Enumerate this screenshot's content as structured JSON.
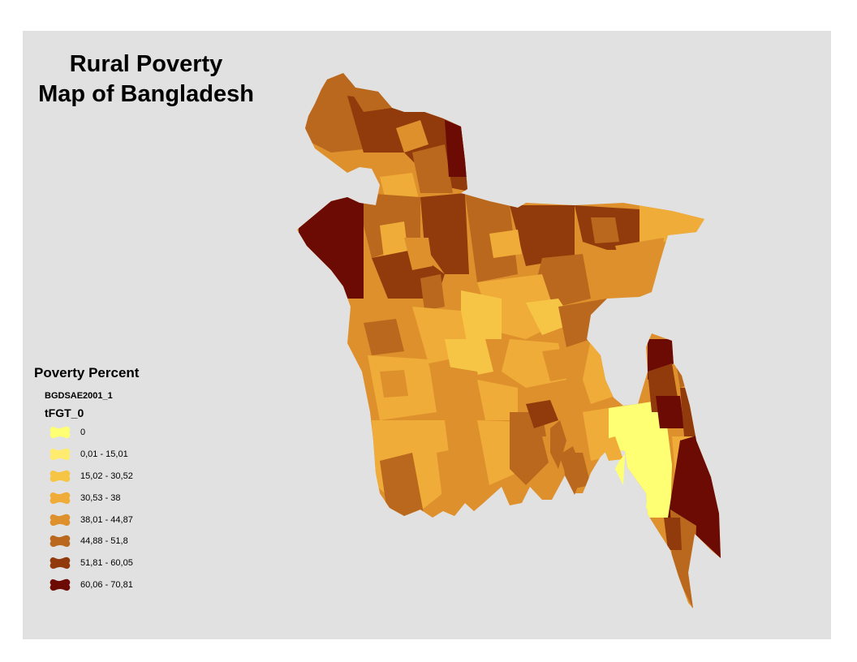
{
  "title": {
    "line1": "Rural Poverty",
    "line2": "Map of Bangladesh"
  },
  "legend": {
    "title": "Poverty Percent",
    "layer": "BGDSAE2001_1",
    "field": "tFGT_0",
    "classes": [
      {
        "label": "0",
        "color": "#ffff73"
      },
      {
        "label": "0,01 - 15,01",
        "color": "#ffeb6e"
      },
      {
        "label": "15,02 - 30,52",
        "color": "#f7c545"
      },
      {
        "label": "30,53 - 38",
        "color": "#f0ac38"
      },
      {
        "label": "38,01 - 44,87",
        "color": "#de902d"
      },
      {
        "label": "44,88 - 51,8",
        "color": "#ba681e"
      },
      {
        "label": "51,81 - 60,05",
        "color": "#913a0c"
      },
      {
        "label": "60,06 - 70,81",
        "color": "#6b0b03"
      }
    ]
  },
  "map": {
    "background": "#e1e1e1"
  }
}
